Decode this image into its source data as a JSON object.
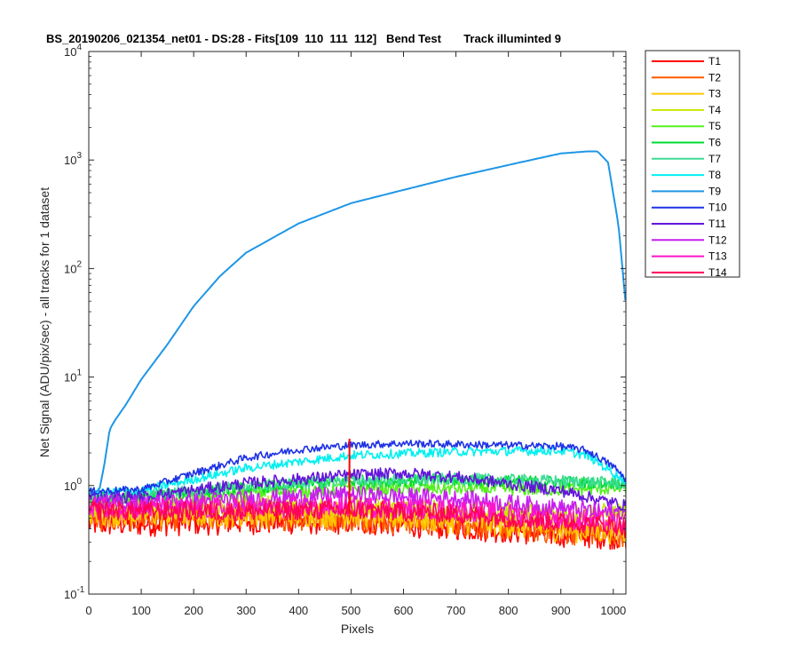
{
  "chart_data": {
    "type": "line",
    "title": "BS_20190206_021354_net01 - DS:28 - Fits[109  110  111  112]   Bend Test       Track illuminted 9",
    "xlabel": "Pixels",
    "ylabel": "Net Signal (ADU/pix/sec) - all tracks for 1 dataset",
    "xlim": [
      0,
      1024
    ],
    "ylim": [
      0.1,
      10000
    ],
    "yscale": "log",
    "grid": false,
    "legend_position": "outside-top-right",
    "x_ticks": [
      0,
      100,
      200,
      300,
      400,
      500,
      600,
      700,
      800,
      900,
      1000
    ],
    "x_tick_labels": [
      "0",
      "100",
      "200",
      "300",
      "400",
      "500",
      "600",
      "700",
      "800",
      "900",
      "1000"
    ],
    "y_ticks": [
      0.1,
      1,
      10,
      100,
      1000,
      10000
    ],
    "y_tick_labels": [
      {
        "base": "10",
        "exp": "-1"
      },
      {
        "base": "10",
        "exp": "0"
      },
      {
        "base": "10",
        "exp": "1"
      },
      {
        "base": "10",
        "exp": "2"
      },
      {
        "base": "10",
        "exp": "3"
      },
      {
        "base": "10",
        "exp": "4"
      }
    ],
    "series": [
      {
        "name": "T1",
        "color": "#ff0000",
        "noise": 0.18,
        "x": [
          0,
          100,
          300,
          500,
          700,
          900,
          1024
        ],
        "y": [
          0.45,
          0.45,
          0.47,
          0.47,
          0.42,
          0.36,
          0.34
        ]
      },
      {
        "name": "T2",
        "color": "#ff5a00",
        "noise": 0.18,
        "x": [
          0,
          100,
          300,
          500,
          700,
          900,
          1024
        ],
        "y": [
          0.5,
          0.5,
          0.52,
          0.5,
          0.45,
          0.38,
          0.36
        ]
      },
      {
        "name": "T3",
        "color": "#ffc800",
        "noise": 0.18,
        "x": [
          0,
          100,
          300,
          500,
          700,
          900,
          1024
        ],
        "y": [
          0.55,
          0.55,
          0.55,
          0.55,
          0.48,
          0.4,
          0.38
        ]
      },
      {
        "name": "T4",
        "color": "#c8e600",
        "noise": 0.14,
        "x": [
          0,
          100,
          300,
          500,
          700,
          900,
          1024
        ],
        "y": [
          0.62,
          0.62,
          0.66,
          0.64,
          0.58,
          0.55,
          0.55
        ]
      },
      {
        "name": "T5",
        "color": "#55f020",
        "noise": 0.09,
        "x": [
          0,
          100,
          300,
          500,
          700,
          900,
          1024
        ],
        "y": [
          0.72,
          0.76,
          0.86,
          0.94,
          0.94,
          0.92,
          0.95
        ]
      },
      {
        "name": "T6",
        "color": "#00dc32",
        "noise": 0.08,
        "x": [
          0,
          100,
          300,
          500,
          700,
          900,
          1024
        ],
        "y": [
          0.75,
          0.8,
          0.95,
          1.1,
          1.12,
          1.08,
          1.05
        ]
      },
      {
        "name": "T7",
        "color": "#3cdc96",
        "noise": 0.08,
        "x": [
          0,
          100,
          300,
          500,
          700,
          900,
          1024
        ],
        "y": [
          0.78,
          0.82,
          0.98,
          1.12,
          1.15,
          1.1,
          1.05
        ]
      },
      {
        "name": "T8",
        "color": "#00f0f0",
        "noise": 0.06,
        "x": [
          0,
          100,
          300,
          500,
          700,
          900,
          950,
          1024
        ],
        "y": [
          0.85,
          0.9,
          1.45,
          1.9,
          2.05,
          2.1,
          1.9,
          1.1
        ]
      },
      {
        "name": "T9",
        "color": "#1e96e6",
        "noise": 0.0,
        "x": [
          0,
          20,
          30,
          40,
          50,
          70,
          100,
          150,
          200,
          250,
          300,
          400,
          500,
          600,
          700,
          800,
          900,
          950,
          970,
          990,
          1010,
          1024
        ],
        "y": [
          0.85,
          0.9,
          1.6,
          3.3,
          4,
          5.5,
          9.5,
          20,
          45,
          85,
          140,
          260,
          400,
          530,
          700,
          900,
          1150,
          1200,
          1200,
          950,
          250,
          45
        ]
      },
      {
        "name": "T10",
        "color": "#1e32e6",
        "noise": 0.05,
        "x": [
          0,
          100,
          200,
          300,
          400,
          500,
          600,
          700,
          800,
          900,
          950,
          1000,
          1024
        ],
        "y": [
          0.88,
          0.92,
          1.3,
          1.8,
          2.15,
          2.35,
          2.45,
          2.4,
          2.35,
          2.3,
          2.1,
          1.5,
          1.15
        ]
      },
      {
        "name": "T11",
        "color": "#6414dc",
        "noise": 0.08,
        "x": [
          0,
          100,
          300,
          500,
          600,
          700,
          900,
          1024
        ],
        "y": [
          0.78,
          0.78,
          1.05,
          1.25,
          1.3,
          1.2,
          0.9,
          0.65
        ]
      },
      {
        "name": "T12",
        "color": "#c81ef0",
        "noise": 0.12,
        "x": [
          0,
          100,
          300,
          500,
          700,
          900,
          1024
        ],
        "y": [
          0.7,
          0.68,
          0.75,
          0.82,
          0.76,
          0.62,
          0.55
        ]
      },
      {
        "name": "T13",
        "color": "#ff14c8",
        "noise": 0.14,
        "x": [
          0,
          100,
          300,
          500,
          700,
          900,
          1024
        ],
        "y": [
          0.65,
          0.62,
          0.62,
          0.64,
          0.6,
          0.5,
          0.45
        ]
      },
      {
        "name": "T14",
        "color": "#ff005a",
        "noise": 0.13,
        "x": [
          0,
          100,
          300,
          500,
          700,
          900,
          1024
        ],
        "y": [
          0.6,
          0.58,
          0.58,
          0.6,
          0.55,
          0.46,
          0.42
        ]
      }
    ],
    "annotations": [
      {
        "type": "vertical-line",
        "x": 497,
        "y_from": 0.55,
        "y_to": 2.7,
        "color": "#ff0000"
      }
    ]
  }
}
